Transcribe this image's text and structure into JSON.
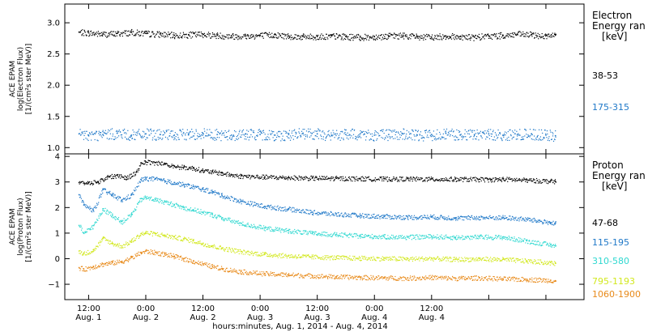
{
  "chart_data": [
    {
      "type": "scatter",
      "panel": "electron",
      "ylabel_lines": [
        "ACE EPAM",
        "log(Electron Flux)",
        "[1/(cm²s ster MeV)]"
      ],
      "ylim": [
        0.9,
        3.3
      ],
      "yticks": [
        1.0,
        1.5,
        2.0,
        2.5,
        3.0
      ],
      "ytick_labels": [
        "1.0",
        "1.5",
        "2.0",
        "2.5",
        "3.0"
      ],
      "legend_title_lines": [
        "Electron",
        "Energy ran",
        "[keV]"
      ],
      "series": [
        {
          "name": "38-53",
          "color": "#000000",
          "x": [
            2,
            6,
            12,
            18,
            24,
            30,
            36,
            42,
            48,
            54,
            60,
            66,
            72,
            78,
            84,
            90,
            96,
            102,
            108,
            114,
            120,
            126,
            132,
            138,
            144,
            150,
            156,
            162,
            168,
            174,
            180,
            186,
            192,
            198,
            202
          ],
          "y": [
            2.85,
            2.84,
            2.82,
            2.83,
            2.85,
            2.83,
            2.82,
            2.8,
            2.81,
            2.82,
            2.8,
            2.79,
            2.79,
            2.8,
            2.81,
            2.79,
            2.78,
            2.78,
            2.79,
            2.78,
            2.77,
            2.78,
            2.79,
            2.8,
            2.78,
            2.77,
            2.79,
            2.78,
            2.77,
            2.79,
            2.8,
            2.82,
            2.81,
            2.79,
            2.8
          ]
        },
        {
          "name": "175-315",
          "color": "#1f78c8",
          "x": [
            2,
            6,
            12,
            18,
            24,
            30,
            36,
            42,
            48,
            54,
            60,
            66,
            72,
            78,
            84,
            90,
            96,
            102,
            108,
            114,
            120,
            126,
            132,
            138,
            144,
            150,
            156,
            162,
            168,
            174,
            180,
            186,
            192,
            198,
            202
          ],
          "y": [
            1.22,
            1.2,
            1.21,
            1.23,
            1.2,
            1.22,
            1.21,
            1.2,
            1.22,
            1.23,
            1.21,
            1.2,
            1.22,
            1.21,
            1.2,
            1.21,
            1.23,
            1.22,
            1.2,
            1.21,
            1.22,
            1.2,
            1.21,
            1.22,
            1.2,
            1.21,
            1.23,
            1.2,
            1.21,
            1.22,
            1.2,
            1.21,
            1.22,
            1.2,
            1.19
          ]
        }
      ]
    },
    {
      "type": "scatter",
      "panel": "proton",
      "ylabel_lines": [
        "ACE EPAM",
        "log(Proton Flux)",
        "[1/(cm²s ster MeV)]"
      ],
      "ylim": [
        -1.6,
        4.1
      ],
      "yticks": [
        -1,
        0,
        1,
        2,
        3,
        4
      ],
      "ytick_labels": [
        "−1",
        "0",
        "1",
        "2",
        "3",
        "4"
      ],
      "legend_title_lines": [
        "Proton",
        "Energy ran",
        "[keV]"
      ],
      "series": [
        {
          "name": "47-68",
          "color": "#000000",
          "x": [
            2,
            6,
            10,
            14,
            18,
            22,
            26,
            28,
            30,
            34,
            38,
            42,
            46,
            50,
            54,
            58,
            62,
            66,
            70,
            80,
            90,
            100,
            110,
            120,
            130,
            140,
            150,
            160,
            170,
            175,
            180,
            190,
            200,
            202
          ],
          "y": [
            2.98,
            2.98,
            3.02,
            3.2,
            3.26,
            3.18,
            3.38,
            3.75,
            3.78,
            3.76,
            3.72,
            3.62,
            3.58,
            3.55,
            3.45,
            3.4,
            3.35,
            3.28,
            3.24,
            3.2,
            3.18,
            3.16,
            3.15,
            3.14,
            3.13,
            3.13,
            3.12,
            3.12,
            3.11,
            3.1,
            3.12,
            3.08,
            3.04,
            3.02
          ]
        },
        {
          "name": "115-195",
          "color": "#1f78c8",
          "x": [
            2,
            4,
            8,
            12,
            16,
            20,
            24,
            28,
            30,
            34,
            38,
            42,
            46,
            50,
            54,
            58,
            62,
            70,
            80,
            90,
            100,
            110,
            120,
            130,
            140,
            150,
            160,
            170,
            180,
            190,
            200,
            202
          ],
          "y": [
            2.5,
            2.1,
            1.9,
            2.7,
            2.5,
            2.3,
            2.5,
            3.1,
            3.15,
            3.12,
            3.05,
            2.98,
            2.9,
            2.82,
            2.72,
            2.62,
            2.48,
            2.25,
            2.05,
            1.95,
            1.82,
            1.75,
            1.7,
            1.66,
            1.63,
            1.65,
            1.6,
            1.62,
            1.62,
            1.55,
            1.42,
            1.38
          ]
        },
        {
          "name": "310-580",
          "color": "#2fd8d0",
          "x": [
            2,
            4,
            8,
            12,
            16,
            20,
            24,
            28,
            30,
            34,
            38,
            42,
            46,
            50,
            54,
            58,
            62,
            70,
            80,
            90,
            100,
            110,
            120,
            130,
            140,
            150,
            160,
            170,
            180,
            190,
            200,
            202
          ],
          "y": [
            1.3,
            1.0,
            1.3,
            1.95,
            1.7,
            1.45,
            1.75,
            2.35,
            2.4,
            2.32,
            2.22,
            2.12,
            2.0,
            1.92,
            1.82,
            1.72,
            1.6,
            1.38,
            1.2,
            1.1,
            1.0,
            0.95,
            0.9,
            0.87,
            0.85,
            0.88,
            0.84,
            0.86,
            0.85,
            0.7,
            0.55,
            0.5
          ]
        },
        {
          "name": "795-1193",
          "color": "#d2e81e",
          "x": [
            2,
            4,
            8,
            12,
            16,
            20,
            24,
            28,
            30,
            34,
            38,
            42,
            46,
            50,
            54,
            58,
            62,
            70,
            80,
            90,
            100,
            110,
            120,
            130,
            140,
            150,
            160,
            170,
            180,
            190,
            200,
            202
          ],
          "y": [
            0.3,
            0.2,
            0.35,
            0.8,
            0.6,
            0.5,
            0.7,
            0.98,
            1.02,
            0.98,
            0.92,
            0.85,
            0.78,
            0.7,
            0.6,
            0.5,
            0.42,
            0.28,
            0.18,
            0.12,
            0.08,
            0.05,
            0.03,
            0.02,
            0.0,
            0.02,
            -0.02,
            0.0,
            -0.02,
            -0.08,
            -0.15,
            -0.18
          ]
        },
        {
          "name": "1060-1900",
          "color": "#e88a1a",
          "x": [
            2,
            4,
            8,
            12,
            16,
            20,
            24,
            28,
            30,
            34,
            38,
            42,
            46,
            50,
            54,
            58,
            62,
            70,
            80,
            90,
            100,
            110,
            120,
            130,
            140,
            150,
            160,
            170,
            180,
            190,
            200,
            202
          ],
          "y": [
            -0.35,
            -0.4,
            -0.3,
            -0.2,
            -0.15,
            -0.1,
            0.05,
            0.25,
            0.3,
            0.25,
            0.18,
            0.1,
            0.0,
            -0.1,
            -0.2,
            -0.3,
            -0.38,
            -0.5,
            -0.58,
            -0.62,
            -0.66,
            -0.7,
            -0.72,
            -0.74,
            -0.75,
            -0.72,
            -0.76,
            -0.74,
            -0.78,
            -0.8,
            -0.84,
            -0.86
          ]
        }
      ]
    }
  ],
  "x_axis": {
    "xlim": [
      -4,
      214
    ],
    "ticks": [
      6,
      30,
      54,
      78,
      102,
      126,
      150,
      174,
      198
    ],
    "tick_labels": [
      [
        "12:00",
        "Aug. 1"
      ],
      [
        "0:00",
        "Aug. 2"
      ],
      [
        "12:00",
        "Aug. 2"
      ],
      [
        "0:00",
        "Aug. 3"
      ],
      [
        "12:00",
        "Aug. 3"
      ],
      [
        "0:00",
        "Aug. 4"
      ],
      [
        "12:00",
        "Aug. 4"
      ],
      [
        "",
        ""
      ],
      [
        "",
        ""
      ]
    ],
    "xlabel": "hours:minutes, Aug.  1, 2014 - Aug.  4, 2014"
  }
}
